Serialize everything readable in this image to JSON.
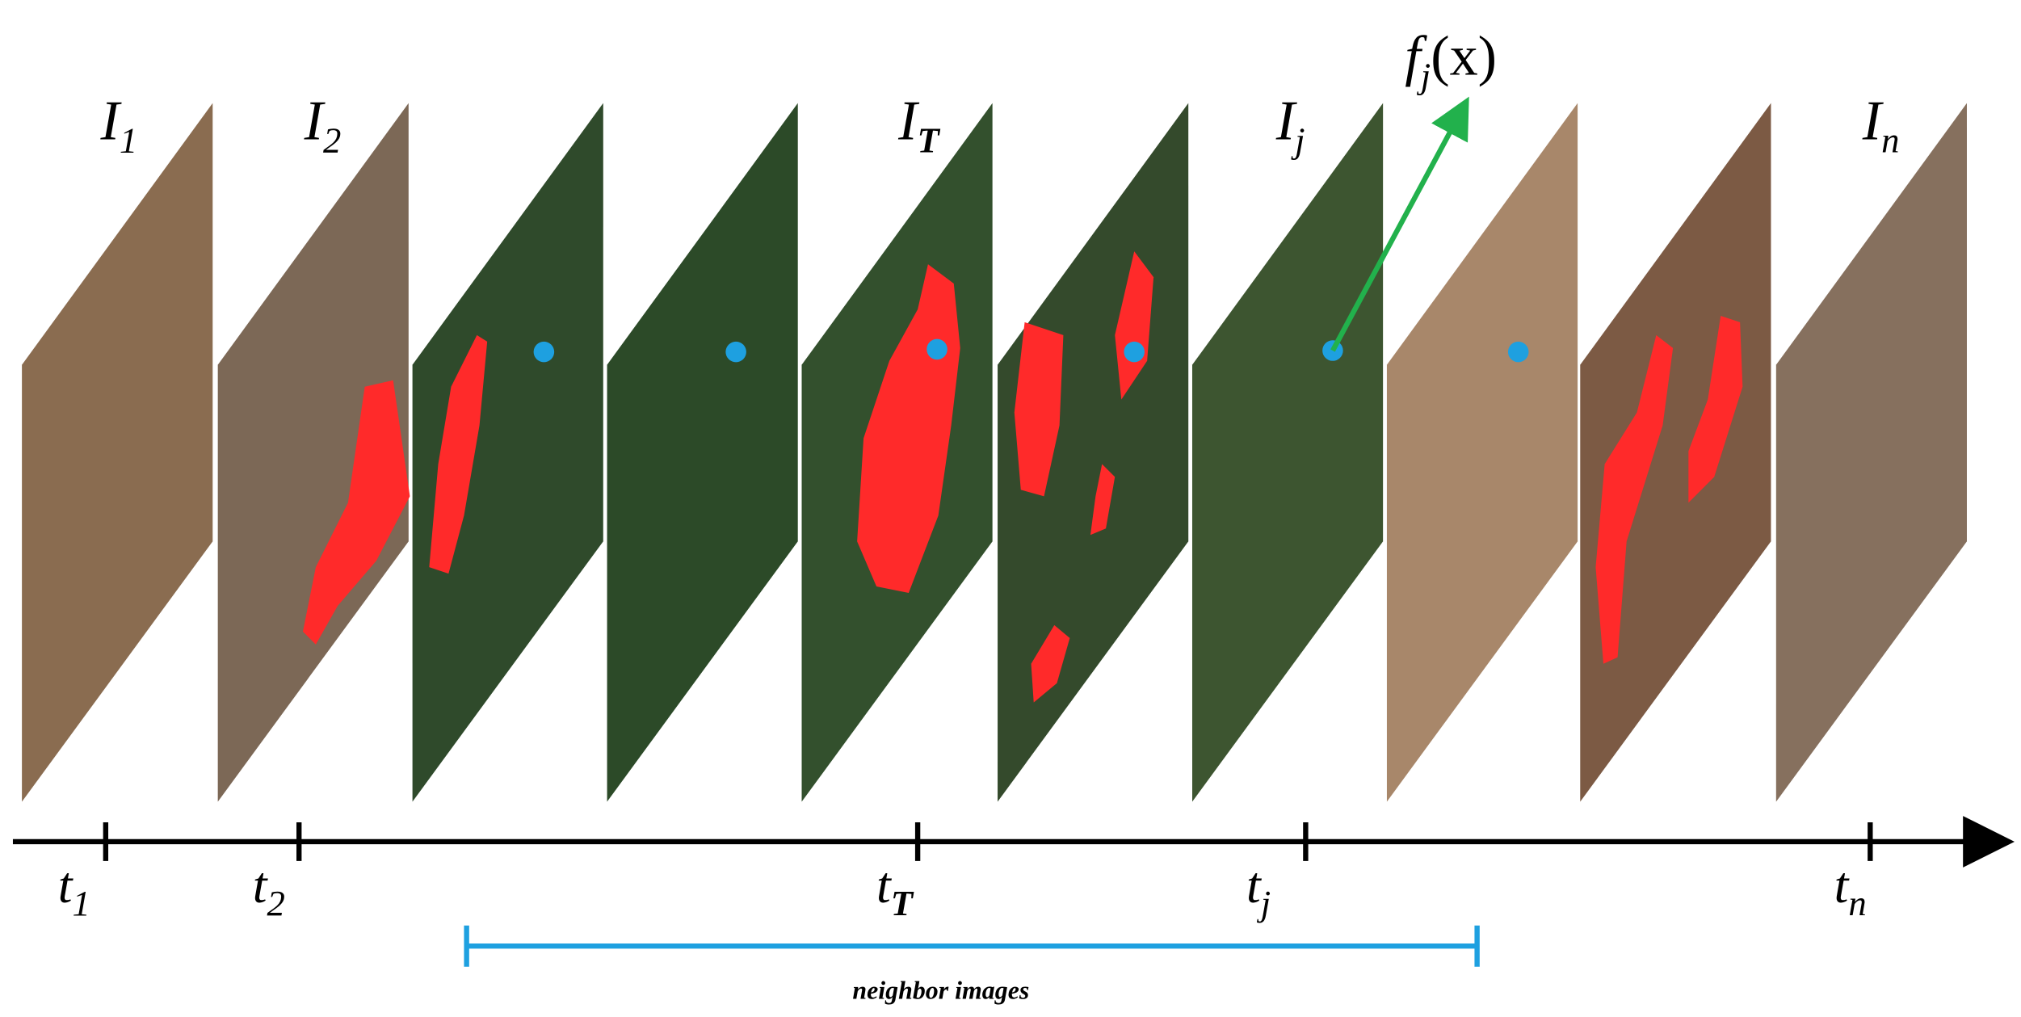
{
  "image_labels": [
    {
      "main": "I",
      "sub": "1"
    },
    {
      "main": "I",
      "sub": "2"
    },
    {
      "main": "I",
      "sub": "T"
    },
    {
      "main": "I",
      "sub": "j"
    },
    {
      "main": "I",
      "sub": "n"
    }
  ],
  "time_labels": [
    {
      "main": "t",
      "sub": "1"
    },
    {
      "main": "t",
      "sub": "2"
    },
    {
      "main": "t",
      "sub": "T"
    },
    {
      "main": "t",
      "sub": "j"
    },
    {
      "main": "t",
      "sub": "n"
    }
  ],
  "feature_label": {
    "main": "f",
    "sub": "j",
    "arg": "(x)"
  },
  "bracket_label": "neighbor images"
}
